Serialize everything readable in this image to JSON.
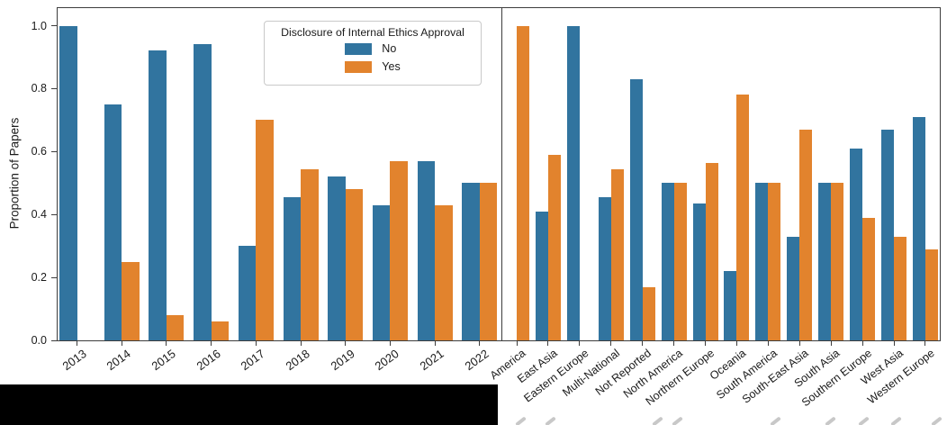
{
  "figure": {
    "ylabel": "Proportion of Papers",
    "yticks": [
      "0.0",
      "0.2",
      "0.4",
      "0.6",
      "0.8",
      "1.0"
    ],
    "series_colors": {
      "No": "#31749f",
      "Yes": "#e2832d"
    },
    "spine_color": "#3d3d3d",
    "legend": {
      "title": "Disclosure of Internal Ethics Approval",
      "entries": [
        {
          "label": "No",
          "color": "#31749f"
        },
        {
          "label": "Yes",
          "color": "#e2832d"
        }
      ]
    }
  },
  "chart_data": [
    {
      "type": "bar",
      "panel": "by-year",
      "title": "",
      "xlabel": "",
      "ylabel": "Proportion of Papers",
      "ylim": [
        0,
        1.05
      ],
      "grid": false,
      "legend_position": "upper right of left panel",
      "categories": [
        "2013",
        "2014",
        "2015",
        "2016",
        "2017",
        "2018",
        "2019",
        "2020",
        "2021",
        "2022"
      ],
      "series": [
        {
          "name": "No",
          "values": [
            1.0,
            0.75,
            0.92,
            0.94,
            0.3,
            0.455,
            0.52,
            0.43,
            0.57,
            0.5
          ]
        },
        {
          "name": "Yes",
          "values": [
            0,
            0.25,
            0.08,
            0.06,
            0.7,
            0.545,
            0.48,
            0.57,
            0.43,
            0.5
          ]
        }
      ]
    },
    {
      "type": "bar",
      "panel": "by-region",
      "title": "",
      "xlabel": "",
      "ylabel": "",
      "ylim": [
        0,
        1.05
      ],
      "grid": false,
      "categories": [
        "America",
        "East Asia",
        "Eastern Europe",
        "Multi-National",
        "Not Reported",
        "North America",
        "Northern Europe",
        "Oceania",
        "South America",
        "South-East Asia",
        "South Asia",
        "Southern Europe",
        "West Asia",
        "Western Europe"
      ],
      "series": [
        {
          "name": "No",
          "values": [
            0,
            0.41,
            1.0,
            0.455,
            0.83,
            0.5,
            0.435,
            0.22,
            0.5,
            0.33,
            0.5,
            0.61,
            0.67,
            0.71
          ]
        },
        {
          "name": "Yes",
          "values": [
            1.0,
            0.59,
            0,
            0.545,
            0.17,
            0.5,
            0.565,
            0.78,
            0.5,
            0.67,
            0.5,
            0.39,
            0.33,
            0.29
          ]
        }
      ]
    }
  ]
}
